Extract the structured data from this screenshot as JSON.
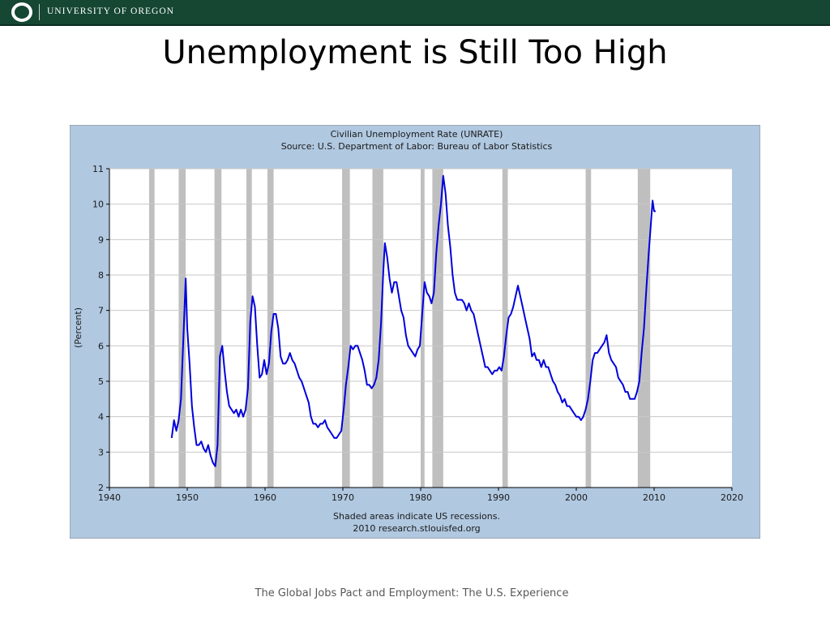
{
  "header": {
    "university_name": "UNIVERSITY OF OREGON",
    "bar_color": "#154733"
  },
  "slide": {
    "title": "Unemployment is Still Too High",
    "footer": "The Global Jobs Pact and Employment: The U.S. Experience"
  },
  "chart_data": {
    "type": "line",
    "title": "Civilian Unemployment Rate (UNRATE)",
    "subtitle": "Source: U.S. Department of Labor: Bureau of Labor Statistics",
    "xlabel": "",
    "ylabel": "(Percent)",
    "xlim": [
      1940,
      2020
    ],
    "ylim": [
      2,
      11
    ],
    "x_ticks": [
      1940,
      1950,
      1960,
      1970,
      1980,
      1990,
      2000,
      2010,
      2020
    ],
    "y_ticks": [
      2,
      3,
      4,
      5,
      6,
      7,
      8,
      9,
      10,
      11
    ],
    "grid": true,
    "note_line1": "Shaded areas indicate US recessions.",
    "note_line2": "2010 research.stlouisfed.org",
    "colors": {
      "line": "#0000dd",
      "recession": "#bfbfbf",
      "frame_bg": "#b0c8e0",
      "plot_bg": "#ffffff"
    },
    "recessions": [
      [
        1945.1,
        1945.8
      ],
      [
        1948.9,
        1949.8
      ],
      [
        1953.5,
        1954.4
      ],
      [
        1957.6,
        1958.3
      ],
      [
        1960.3,
        1961.1
      ],
      [
        1969.9,
        1970.9
      ],
      [
        1973.8,
        1975.2
      ],
      [
        1980.0,
        1980.5
      ],
      [
        1981.5,
        1982.9
      ],
      [
        1990.5,
        1991.2
      ],
      [
        2001.2,
        2001.9
      ],
      [
        2007.9,
        2009.5
      ]
    ],
    "series": [
      {
        "x": [
          1948.0,
          1948.3,
          1948.6,
          1948.9,
          1949.2,
          1949.5,
          1949.8,
          1950.0,
          1950.3,
          1950.6,
          1950.9,
          1951.2,
          1951.5,
          1951.8,
          1952.1,
          1952.4,
          1952.7,
          1953.0,
          1953.3,
          1953.6,
          1953.9,
          1954.2,
          1954.5,
          1954.8,
          1955.1,
          1955.4,
          1955.7,
          1956.0,
          1956.3,
          1956.6,
          1956.9,
          1957.2,
          1957.5,
          1957.8,
          1958.1,
          1958.4,
          1958.7,
          1959.0,
          1959.3,
          1959.6,
          1959.9,
          1960.2,
          1960.5,
          1960.8,
          1961.1,
          1961.4,
          1961.7,
          1962.0,
          1962.3,
          1962.6,
          1962.9,
          1963.2,
          1963.5,
          1963.8,
          1964.1,
          1964.4,
          1964.7,
          1965.0,
          1965.3,
          1965.6,
          1965.9,
          1966.2,
          1966.5,
          1966.8,
          1967.1,
          1967.4,
          1967.7,
          1968.0,
          1968.3,
          1968.6,
          1968.9,
          1969.2,
          1969.5,
          1969.8,
          1970.1,
          1970.4,
          1970.7,
          1971.0,
          1971.3,
          1971.6,
          1971.9,
          1972.2,
          1972.5,
          1972.8,
          1973.1,
          1973.4,
          1973.7,
          1974.0,
          1974.3,
          1974.6,
          1974.9,
          1975.2,
          1975.4,
          1975.7,
          1976.0,
          1976.3,
          1976.6,
          1976.9,
          1977.2,
          1977.5,
          1977.8,
          1978.1,
          1978.4,
          1978.7,
          1979.0,
          1979.3,
          1979.6,
          1979.9,
          1980.2,
          1980.5,
          1980.8,
          1981.1,
          1981.4,
          1981.7,
          1982.0,
          1982.3,
          1982.6,
          1982.9,
          1983.2,
          1983.5,
          1983.8,
          1984.1,
          1984.4,
          1984.7,
          1985.0,
          1985.3,
          1985.6,
          1985.9,
          1986.2,
          1986.5,
          1986.8,
          1987.1,
          1987.4,
          1987.7,
          1988.0,
          1988.3,
          1988.6,
          1988.9,
          1989.2,
          1989.5,
          1989.8,
          1990.1,
          1990.4,
          1990.7,
          1991.0,
          1991.3,
          1991.6,
          1991.9,
          1992.2,
          1992.5,
          1992.8,
          1993.1,
          1993.4,
          1993.7,
          1994.0,
          1994.3,
          1994.6,
          1994.9,
          1995.2,
          1995.5,
          1995.8,
          1996.1,
          1996.4,
          1996.7,
          1997.0,
          1997.3,
          1997.6,
          1997.9,
          1998.2,
          1998.5,
          1998.8,
          1999.1,
          1999.4,
          1999.7,
          2000.0,
          2000.3,
          2000.6,
          2000.9,
          2001.2,
          2001.5,
          2001.8,
          2002.1,
          2002.4,
          2002.7,
          2003.0,
          2003.3,
          2003.6,
          2003.9,
          2004.2,
          2004.5,
          2004.8,
          2005.1,
          2005.4,
          2005.7,
          2006.0,
          2006.3,
          2006.6,
          2006.9,
          2007.2,
          2007.5,
          2007.8,
          2008.1,
          2008.4,
          2008.7,
          2009.0,
          2009.3,
          2009.6,
          2009.8,
          2010.0,
          2010.2
        ],
        "y": [
          3.4,
          3.9,
          3.6,
          3.9,
          4.5,
          6.2,
          7.9,
          6.5,
          5.5,
          4.3,
          3.7,
          3.2,
          3.2,
          3.3,
          3.1,
          3.0,
          3.2,
          2.9,
          2.7,
          2.6,
          3.2,
          5.7,
          6.0,
          5.3,
          4.7,
          4.3,
          4.2,
          4.1,
          4.2,
          4.0,
          4.2,
          4.0,
          4.2,
          4.8,
          6.7,
          7.4,
          7.1,
          6.0,
          5.1,
          5.2,
          5.6,
          5.2,
          5.5,
          6.4,
          6.9,
          6.9,
          6.5,
          5.7,
          5.5,
          5.5,
          5.6,
          5.8,
          5.6,
          5.5,
          5.3,
          5.1,
          5.0,
          4.8,
          4.6,
          4.4,
          4.0,
          3.8,
          3.8,
          3.7,
          3.8,
          3.8,
          3.9,
          3.7,
          3.6,
          3.5,
          3.4,
          3.4,
          3.5,
          3.6,
          4.2,
          4.9,
          5.4,
          6.0,
          5.9,
          6.0,
          6.0,
          5.8,
          5.6,
          5.3,
          4.9,
          4.9,
          4.8,
          4.9,
          5.1,
          5.6,
          6.6,
          8.1,
          8.9,
          8.5,
          7.9,
          7.5,
          7.8,
          7.8,
          7.4,
          7.0,
          6.8,
          6.3,
          6.0,
          5.9,
          5.8,
          5.7,
          5.9,
          6.0,
          6.9,
          7.8,
          7.5,
          7.4,
          7.2,
          7.5,
          8.6,
          9.4,
          10.0,
          10.8,
          10.3,
          9.4,
          8.8,
          8.0,
          7.5,
          7.3,
          7.3,
          7.3,
          7.2,
          7.0,
          7.2,
          7.0,
          6.9,
          6.6,
          6.3,
          6.0,
          5.7,
          5.4,
          5.4,
          5.3,
          5.2,
          5.3,
          5.3,
          5.4,
          5.3,
          5.7,
          6.3,
          6.8,
          6.9,
          7.1,
          7.4,
          7.7,
          7.4,
          7.1,
          6.8,
          6.5,
          6.2,
          5.7,
          5.8,
          5.6,
          5.6,
          5.4,
          5.6,
          5.4,
          5.4,
          5.2,
          5.0,
          4.9,
          4.7,
          4.6,
          4.4,
          4.5,
          4.3,
          4.3,
          4.2,
          4.1,
          4.0,
          4.0,
          3.9,
          4.0,
          4.2,
          4.5,
          5.0,
          5.6,
          5.8,
          5.8,
          5.9,
          6.0,
          6.1,
          6.3,
          5.8,
          5.6,
          5.5,
          5.4,
          5.1,
          5.0,
          4.9,
          4.7,
          4.7,
          4.5,
          4.5,
          4.5,
          4.7,
          5.0,
          5.8,
          6.5,
          7.6,
          8.6,
          9.5,
          10.1,
          9.8,
          9.8
        ]
      }
    ]
  }
}
